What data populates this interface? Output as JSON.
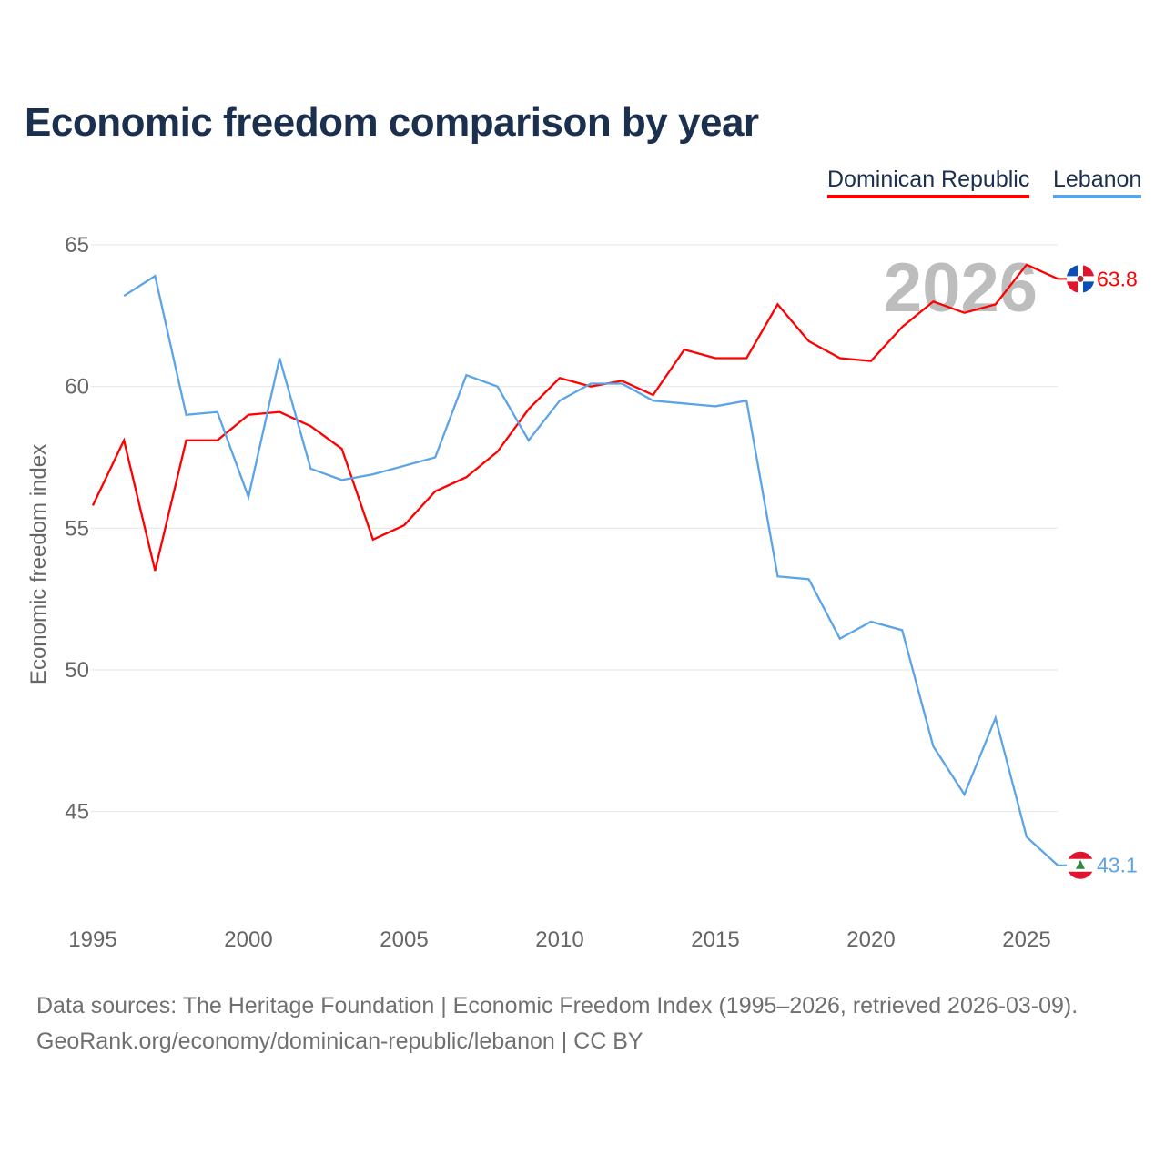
{
  "chart_data": {
    "type": "line",
    "title": "Economic freedom comparison by year",
    "xlabel": "",
    "ylabel": "Economic freedom index",
    "xlim": [
      1995,
      2026
    ],
    "ylim": [
      42,
      66
    ],
    "yticks": [
      45,
      50,
      55,
      60,
      65
    ],
    "xticks": [
      1995,
      2000,
      2005,
      2010,
      2015,
      2020,
      2025
    ],
    "grid": true,
    "legend": "top-right",
    "watermark_year": "2026",
    "series": [
      {
        "name": "Dominican Republic",
        "color": "#ff0000",
        "end_label": "63.8",
        "x": [
          1995,
          1996,
          1997,
          1998,
          1999,
          2000,
          2001,
          2002,
          2003,
          2004,
          2005,
          2006,
          2007,
          2008,
          2009,
          2010,
          2011,
          2012,
          2013,
          2014,
          2015,
          2016,
          2017,
          2018,
          2019,
          2020,
          2021,
          2022,
          2023,
          2024,
          2025,
          2026
        ],
        "values": [
          55.8,
          58.1,
          53.5,
          58.1,
          58.1,
          59.0,
          59.1,
          58.6,
          57.8,
          54.6,
          55.1,
          56.3,
          56.8,
          57.7,
          59.2,
          60.3,
          60.0,
          60.2,
          59.7,
          61.3,
          61.0,
          61.0,
          62.9,
          61.6,
          61.0,
          60.9,
          62.1,
          63.0,
          62.6,
          62.9,
          64.3,
          63.8
        ]
      },
      {
        "name": "Lebanon",
        "color": "#5ba4e8",
        "end_label": "43.1",
        "x": [
          1996,
          1997,
          1998,
          1999,
          2000,
          2001,
          2002,
          2003,
          2004,
          2005,
          2006,
          2007,
          2008,
          2009,
          2010,
          2011,
          2012,
          2013,
          2014,
          2015,
          2016,
          2017,
          2018,
          2019,
          2020,
          2021,
          2022,
          2023,
          2024,
          2025,
          2026
        ],
        "values": [
          63.2,
          63.9,
          59.0,
          59.1,
          56.1,
          61.0,
          57.1,
          56.7,
          56.9,
          57.2,
          57.5,
          60.4,
          60.0,
          58.1,
          59.5,
          60.1,
          60.1,
          59.5,
          59.4,
          59.3,
          59.5,
          53.3,
          53.2,
          51.1,
          51.7,
          51.4,
          47.3,
          45.6,
          48.3,
          44.1,
          43.1
        ]
      }
    ]
  },
  "footer": {
    "line1": "Data sources: The Heritage Foundation | Economic Freedom Index (1995–2026, retrieved 2026-03-09).",
    "line2": "GeoRank.org/economy/dominican-republic/lebanon | CC BY"
  }
}
